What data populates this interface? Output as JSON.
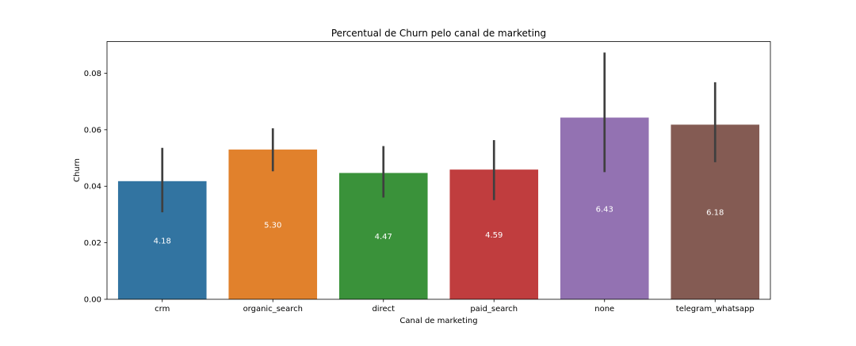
{
  "chart_data": {
    "type": "bar",
    "title": "Percentual de Churn pelo canal de marketing",
    "xlabel": "Canal de marketing",
    "ylabel": "Churn",
    "categories": [
      "crm",
      "organic_search",
      "direct",
      "paid_search",
      "none",
      "telegram_whatsapp"
    ],
    "values": [
      0.0418,
      0.053,
      0.0447,
      0.0459,
      0.0643,
      0.0618
    ],
    "error_low": [
      0.0308,
      0.0453,
      0.036,
      0.0351,
      0.045,
      0.0485
    ],
    "error_high": [
      0.0536,
      0.0605,
      0.0542,
      0.0563,
      0.0873,
      0.0768
    ],
    "data_labels": [
      "4.18",
      "5.30",
      "4.47",
      "4.59",
      "6.43",
      "6.18"
    ],
    "colors": [
      "#3274a1",
      "#e1812c",
      "#3a923a",
      "#c03d3e",
      "#9372b2",
      "#845b53"
    ],
    "error_color": "#3f3f3f",
    "ylim": [
      0,
      0.0912
    ],
    "yticks": [
      0.0,
      0.02,
      0.04,
      0.06,
      0.08
    ],
    "ytick_labels": [
      "0.00",
      "0.02",
      "0.04",
      "0.06",
      "0.08"
    ],
    "grid": false,
    "legend": "none"
  }
}
